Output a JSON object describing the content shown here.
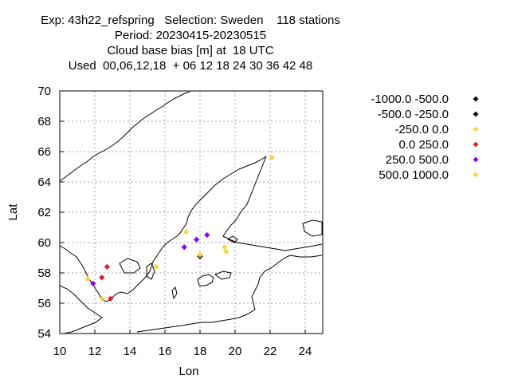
{
  "chart_data": {
    "type": "scatter",
    "title_lines": [
      "Exp: 43h22_refspring   Selection: Sweden    118 stations",
      "Period: 20230415-20230515",
      "Cloud base bias [m] at  18 UTC",
      "Used  00,06,12,18  + 06 12 18 24 30 36 42 48"
    ],
    "xlabel": "Lon",
    "ylabel": "Lat",
    "xlim": [
      10,
      25
    ],
    "ylim": [
      54,
      70
    ],
    "xticks": [
      10,
      12,
      14,
      16,
      18,
      20,
      22,
      24
    ],
    "yticks": [
      54,
      56,
      58,
      60,
      62,
      64,
      66,
      68,
      70
    ],
    "grid": true,
    "legend_position": "right",
    "series": [
      {
        "name": "-1000.0 -500.0",
        "color": "#000000",
        "points": []
      },
      {
        "name": "-500.0 -250.0",
        "color": "#000000",
        "points": [
          [
            18.0,
            59.1
          ]
        ]
      },
      {
        "name": "-250.0 0.0",
        "color": "#f5d742",
        "points": [
          [
            11.6,
            57.6
          ],
          [
            12.4,
            56.3
          ],
          [
            15.5,
            58.4
          ],
          [
            17.2,
            60.7
          ],
          [
            18.0,
            59.2
          ],
          [
            19.4,
            59.7
          ],
          [
            19.5,
            59.4
          ],
          [
            22.1,
            65.6
          ]
        ]
      },
      {
        "name": "0.0 250.0",
        "color": "#e0201b",
        "points": [
          [
            12.4,
            57.7
          ],
          [
            12.7,
            58.4
          ],
          [
            12.9,
            56.3
          ]
        ]
      },
      {
        "name": "250.0 500.0",
        "color": "#8b00ff",
        "points": [
          [
            11.9,
            57.3
          ],
          [
            17.1,
            59.7
          ],
          [
            17.8,
            60.2
          ],
          [
            18.4,
            60.5
          ]
        ]
      },
      {
        "name": "500.0 1000.0",
        "color": "#f5d742",
        "points": []
      }
    ]
  }
}
